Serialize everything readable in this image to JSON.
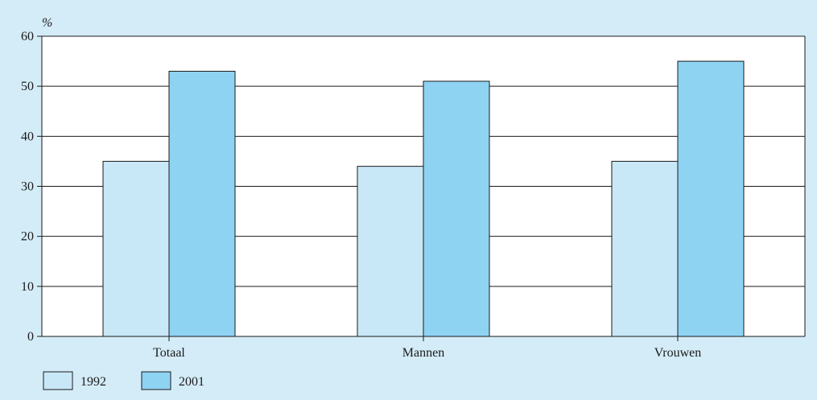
{
  "chart_data": {
    "type": "bar",
    "ylabel": "%",
    "ylim": [
      0,
      60
    ],
    "yticks": [
      0,
      10,
      20,
      30,
      40,
      50,
      60
    ],
    "categories": [
      "Totaal",
      "Mannen",
      "Vrouwen"
    ],
    "series": [
      {
        "name": "1992",
        "values": [
          35,
          34,
          35
        ],
        "color": "#c8e8f8"
      },
      {
        "name": "2001",
        "values": [
          53,
          51,
          55
        ],
        "color": "#8fd3f3"
      }
    ],
    "grid": true,
    "legend_position": "bottom-left",
    "background_color": "#d4ecf8",
    "plot_background_color": "#ffffff"
  }
}
